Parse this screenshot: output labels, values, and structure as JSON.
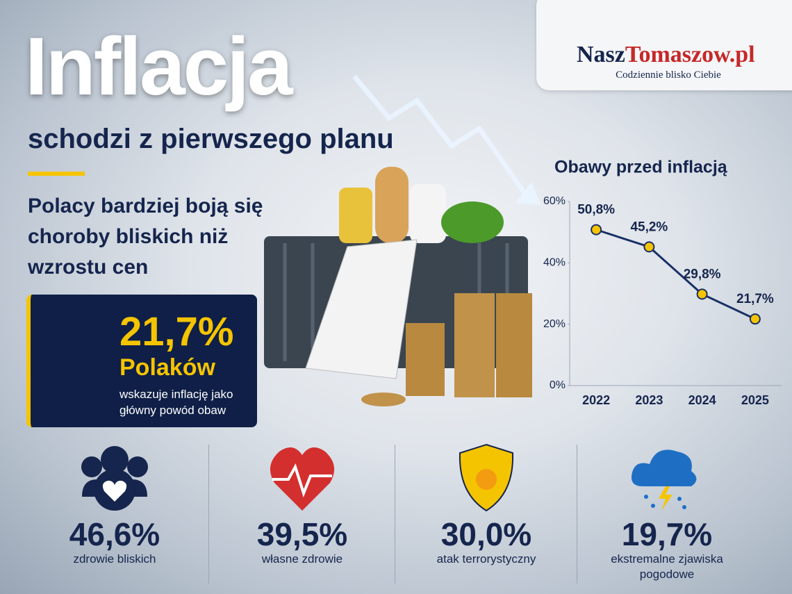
{
  "header": {
    "title": "Inflacja",
    "subtitle": "schodzi z pierwszego planu",
    "lead": "Polacy bardziej boją się choroby bliskich niż wzrostu cen"
  },
  "highlight": {
    "value": "21,7%",
    "subject": "Polaków",
    "description": "wskazuje inflację jako główny powód obaw"
  },
  "logo": {
    "part1": "Nasz",
    "part2": "Tomaszow.pl",
    "tagline": "Codziennie blisko Ciebie"
  },
  "chart_data": {
    "type": "line",
    "title": "Obawy przed inflacją",
    "categories": [
      "2022",
      "2023",
      "2024",
      "2025"
    ],
    "values": [
      50.8,
      45.2,
      29.8,
      21.7
    ],
    "value_labels": [
      "50,8%",
      "45,2%",
      "29,8%",
      "21,7%"
    ],
    "color": "#1a2f66",
    "marker_color": "#f5c400",
    "ylim": [
      0,
      60
    ],
    "yticks": [
      {
        "value": 0,
        "label": "0%"
      },
      {
        "value": 20,
        "label": "20%"
      },
      {
        "value": 40,
        "label": "40%"
      },
      {
        "value": 60,
        "label": "60%"
      }
    ]
  },
  "stats": [
    {
      "value": "46,6%",
      "label": "zdrowie bliskich"
    },
    {
      "value": "39,5%",
      "label": "własne zdrowie"
    },
    {
      "value": "30,0%",
      "label": "atak terrorystyczny"
    },
    {
      "value": "19,7%",
      "label": "ekstremalne zjawiska pogodowe"
    }
  ]
}
